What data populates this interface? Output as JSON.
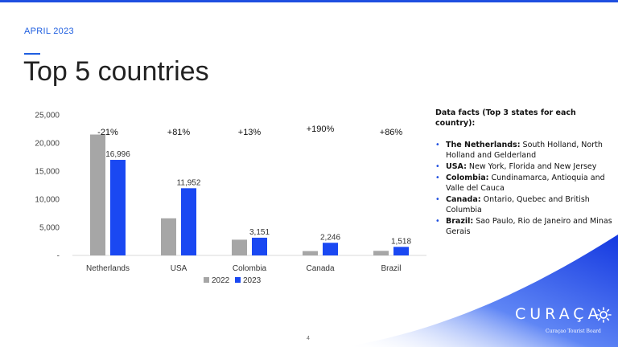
{
  "header": {
    "date": "APRIL 2023",
    "title": "Top 5 countries"
  },
  "chart_data": {
    "type": "bar",
    "categories": [
      "Netherlands",
      "USA",
      "Colombia",
      "Canada",
      "Brazil"
    ],
    "series": [
      {
        "name": "2022",
        "values": [
          21500,
          6600,
          2800,
          775,
          815
        ],
        "color": "#a6a6a6"
      },
      {
        "name": "2023",
        "values": [
          16996,
          11952,
          3151,
          2246,
          1518
        ],
        "color": "#1a48f2"
      }
    ],
    "data_labels": [
      "16,996",
      "11,952",
      "3,151",
      "2,246",
      "1,518"
    ],
    "change_labels": [
      "-21%",
      "+81%",
      "+13%",
      "+190%",
      "+86%"
    ],
    "yticks": [
      "-",
      "5,000",
      "10,000",
      "15,000",
      "20,000",
      "25,000"
    ],
    "ylim": [
      0,
      25000
    ],
    "grid": false,
    "legend": "bottom",
    "xlabel": "",
    "ylabel": ""
  },
  "facts": {
    "heading": "Data facts (Top 3 states for each country):",
    "items": [
      {
        "country": "The Netherlands:",
        "text": " South Holland, North Holland and Gelderland"
      },
      {
        "country": "USA:",
        "text": " New York, Florida and New Jersey"
      },
      {
        "country": "Colombia:",
        "text": " Cundinamarca, Antioquia and Valle del Cauca"
      },
      {
        "country": "Canada:",
        "text": " Ontario, Quebec and British Columbia"
      },
      {
        "country": "Brazil:",
        "text": " Sao Paulo, Rio de Janeiro and Minas Gerais"
      }
    ]
  },
  "footer": {
    "page_number": "4",
    "logo_word": "CURAÇA",
    "logo_sub": "Curaçao Tourist Board",
    "accent_color": "#1f4fe0"
  }
}
